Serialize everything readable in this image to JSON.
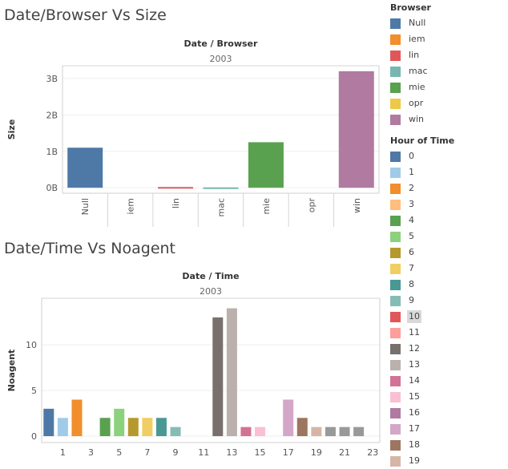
{
  "chart_data": [
    {
      "type": "bar",
      "title": "Date/Browser Vs Size",
      "header": "Date / Browser",
      "group": "2003",
      "ylabel": "Size",
      "categories": [
        "Null",
        "iem",
        "lin",
        "mac",
        "mie",
        "opr",
        "win"
      ],
      "values": [
        1.1,
        0,
        0.02,
        0.01,
        1.25,
        0,
        3.2
      ],
      "value_unit": "B",
      "yticks": [
        "0B",
        "1B",
        "2B",
        "3B"
      ],
      "ytick_values": [
        0,
        1,
        2,
        3
      ],
      "ylim": [
        -0.15,
        3.35
      ],
      "grid": true
    },
    {
      "type": "bar",
      "title": "Date/Time Vs Noagent",
      "header": "Date / Time",
      "group": "2003",
      "ylabel": "Noagent",
      "categories": [
        "0",
        "1",
        "2",
        "3",
        "4",
        "5",
        "6",
        "7",
        "8",
        "9",
        "10",
        "11",
        "12",
        "13",
        "14",
        "15",
        "16",
        "17",
        "18",
        "19",
        "20",
        "21",
        "22",
        "23"
      ],
      "xticks_shown": [
        "1",
        "3",
        "5",
        "7",
        "9",
        "11",
        "13",
        "15",
        "17",
        "19",
        "21",
        "23"
      ],
      "values": [
        3,
        2,
        4,
        0,
        2,
        3,
        2,
        2,
        2,
        1,
        0,
        0,
        13,
        14,
        1,
        1,
        0,
        4,
        2,
        1,
        1,
        1,
        1,
        0
      ],
      "yticks": [
        "0",
        "5",
        "10"
      ],
      "ytick_values": [
        0,
        5,
        10
      ],
      "ylim": [
        -0.7,
        15.1
      ],
      "grid": true
    }
  ],
  "legend_browser": {
    "title": "Browser",
    "items": [
      {
        "label": "Null",
        "color": "#4e79a7"
      },
      {
        "label": "iem",
        "color": "#f28e2b"
      },
      {
        "label": "lin",
        "color": "#e15759"
      },
      {
        "label": "mac",
        "color": "#76b7b2"
      },
      {
        "label": "mie",
        "color": "#59a14f"
      },
      {
        "label": "opr",
        "color": "#edc948"
      },
      {
        "label": "win",
        "color": "#b07aa1"
      }
    ]
  },
  "legend_hour": {
    "title": "Hour of Time",
    "highlighted": "10",
    "items": [
      {
        "label": "0",
        "color": "#4e79a7"
      },
      {
        "label": "1",
        "color": "#a0cbe8"
      },
      {
        "label": "2",
        "color": "#f28e2b"
      },
      {
        "label": "3",
        "color": "#ffbe7d"
      },
      {
        "label": "4",
        "color": "#59a14f"
      },
      {
        "label": "5",
        "color": "#8cd17d"
      },
      {
        "label": "6",
        "color": "#b6992d"
      },
      {
        "label": "7",
        "color": "#f1ce63"
      },
      {
        "label": "8",
        "color": "#499894"
      },
      {
        "label": "9",
        "color": "#86bcb6"
      },
      {
        "label": "10",
        "color": "#e15759"
      },
      {
        "label": "11",
        "color": "#ff9d9a"
      },
      {
        "label": "12",
        "color": "#79706e"
      },
      {
        "label": "13",
        "color": "#bab0ac"
      },
      {
        "label": "14",
        "color": "#d37295"
      },
      {
        "label": "15",
        "color": "#fabfd2"
      },
      {
        "label": "16",
        "color": "#b07aa1"
      },
      {
        "label": "17",
        "color": "#d4a6c8"
      },
      {
        "label": "18",
        "color": "#9d7660"
      },
      {
        "label": "19",
        "color": "#d7b5a6"
      }
    ]
  }
}
